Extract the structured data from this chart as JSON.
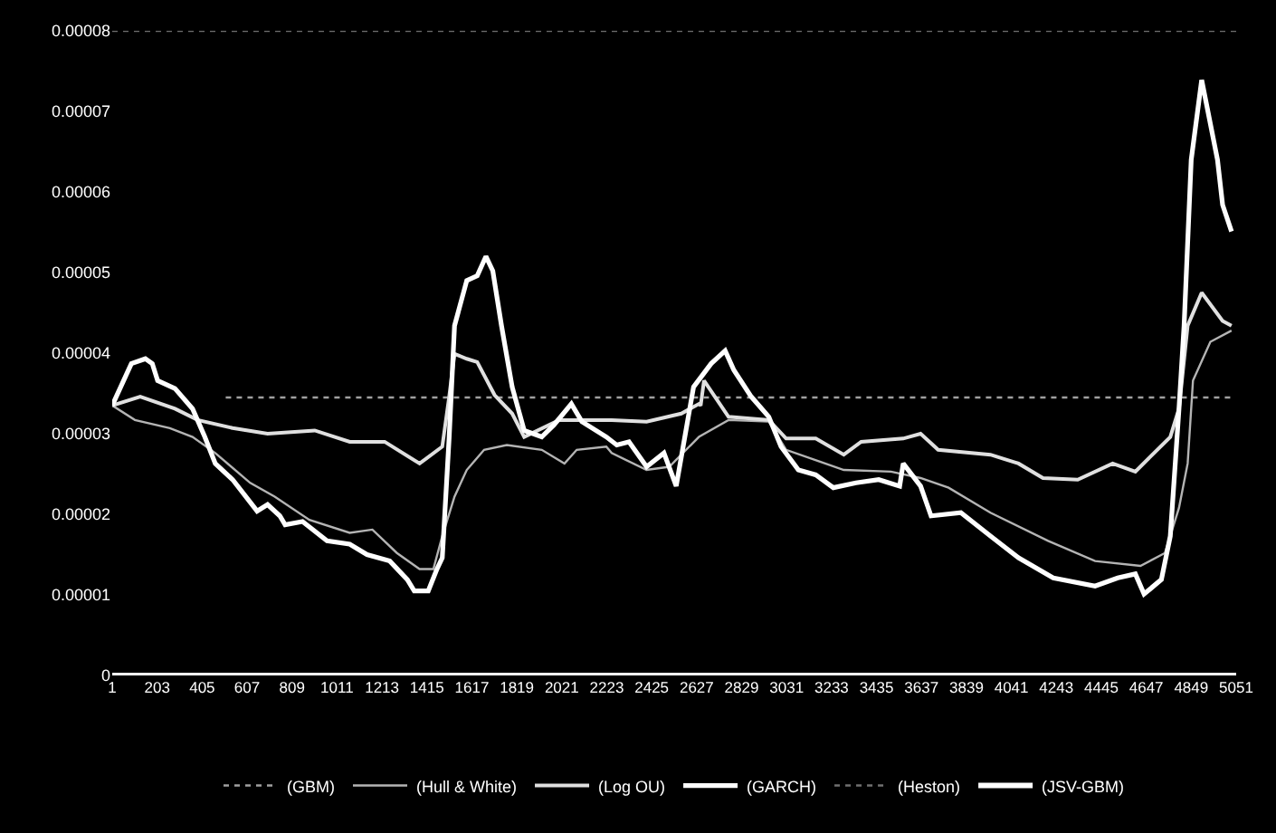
{
  "chart_data": {
    "type": "line",
    "xlim": [
      1,
      5051
    ],
    "xticks": [
      1,
      203,
      405,
      607,
      809,
      1011,
      1213,
      1415,
      1617,
      1819,
      2021,
      2223,
      2425,
      2627,
      2829,
      3031,
      3233,
      3435,
      3637,
      3839,
      4041,
      4243,
      4445,
      4647,
      4849,
      5051
    ],
    "ylim": [
      0,
      8e-05
    ],
    "yticks": [
      0,
      {
        "value": 1e-05,
        "label": "0.00001"
      },
      {
        "value": 2e-05,
        "label": "0.00002"
      },
      {
        "value": 3e-05,
        "label": "0.00003"
      },
      {
        "value": 4e-05,
        "label": "0.00004"
      },
      {
        "value": 5e-05,
        "label": "0.00005"
      },
      {
        "value": 6e-05,
        "label": "0.00006"
      },
      {
        "value": 7e-05,
        "label": "0.00007"
      },
      {
        "value": 8e-05,
        "label": "0.00008"
      }
    ],
    "grid": false,
    "legend": "bottom",
    "marker": "none",
    "series": [
      {
        "name": "(GBM)",
        "color": "#a0a0a0",
        "line_style": "dotted",
        "x": [
          511,
          5030
        ],
        "values": [
          3.45e-05,
          3.45e-05
        ]
      },
      {
        "name": "(Hull & White)",
        "color": "#b4b4b4",
        "line_style": "solid",
        "x": [
          1,
          103,
          260,
          362,
          464,
          621,
          731,
          887,
          1068,
          1170,
          1280,
          1382,
          1444,
          1484,
          1539,
          1594,
          1672,
          1774,
          1931,
          2033,
          2088,
          2221,
          2245,
          2402,
          2504,
          2637,
          2770,
          2951,
          3029,
          3288,
          3500,
          3633,
          3759,
          3947,
          4206,
          4417,
          4621,
          4731,
          4794,
          4833,
          4857,
          4935,
          5030
        ],
        "values": [
          3.35e-05,
          3.17e-05,
          3.07e-05,
          2.96e-05,
          2.76e-05,
          2.39e-05,
          2.22e-05,
          1.93e-05,
          1.77e-05,
          1.81e-05,
          1.52e-05,
          1.32e-05,
          1.32e-05,
          1.73e-05,
          2.22e-05,
          2.55e-05,
          2.8e-05,
          2.86e-05,
          2.8e-05,
          2.63e-05,
          2.8e-05,
          2.84e-05,
          2.76e-05,
          2.55e-05,
          2.59e-05,
          2.96e-05,
          3.17e-05,
          3.15e-05,
          2.8e-05,
          2.55e-05,
          2.53e-05,
          2.45e-05,
          2.33e-05,
          2.02e-05,
          1.67e-05,
          1.42e-05,
          1.36e-05,
          1.52e-05,
          2.08e-05,
          2.63e-05,
          3.66e-05,
          4.14e-05,
          4.28e-05
        ]
      },
      {
        "name": "(Log OU)",
        "color": "#e0e0e0",
        "line_style": "solid",
        "x": [
          1,
          127,
          283,
          385,
          542,
          699,
          911,
          1068,
          1225,
          1382,
          1484,
          1515,
          1539,
          1594,
          1641,
          1719,
          1798,
          1852,
          2009,
          2221,
          2245,
          2402,
          2558,
          2637,
          2645,
          2660,
          2770,
          2951,
          3029,
          3162,
          3288,
          3366,
          3555,
          3633,
          3712,
          3947,
          4073,
          4183,
          4339,
          4496,
          4598,
          4755,
          4794,
          4833,
          4896,
          4990,
          5030
        ],
        "values": [
          3.35e-05,
          3.46e-05,
          3.31e-05,
          3.17e-05,
          3.07e-05,
          3e-05,
          3.04e-05,
          2.9e-05,
          2.9e-05,
          2.63e-05,
          2.84e-05,
          3.46e-05,
          3.99e-05,
          3.93e-05,
          3.89e-05,
          3.48e-05,
          3.25e-05,
          2.96e-05,
          3.17e-05,
          3.17e-05,
          3.17e-05,
          3.15e-05,
          3.25e-05,
          3.37e-05,
          3.35e-05,
          3.66e-05,
          3.21e-05,
          3.17e-05,
          2.94e-05,
          2.94e-05,
          2.74e-05,
          2.9e-05,
          2.94e-05,
          3e-05,
          2.8e-05,
          2.74e-05,
          2.63e-05,
          2.45e-05,
          2.43e-05,
          2.63e-05,
          2.53e-05,
          2.96e-05,
          3.31e-05,
          4.34e-05,
          4.75e-05,
          4.4e-05,
          4.34e-05
        ]
      },
      {
        "name": "(GARCH)",
        "color": "#ffffff",
        "line_style": "solid",
        "x": [
          1,
          87,
          150,
          181,
          205,
          283,
          362,
          417,
          464,
          542,
          652,
          699,
          754,
          778,
          856,
          966,
          1068,
          1146,
          1248,
          1327,
          1358,
          1421,
          1460,
          1484,
          1515,
          1539,
          1594,
          1641,
          1680,
          1711,
          1750,
          1798,
          1852,
          1931,
          1986,
          2064,
          2111,
          2221,
          2268,
          2323,
          2402,
          2480,
          2535,
          2613,
          2692,
          2755,
          2794,
          2872,
          2951,
          3006,
          3084,
          3162,
          3241,
          3343,
          3445,
          3539,
          3555,
          3633,
          3680,
          3814,
          3947,
          4073,
          4229,
          4417,
          4519,
          4598,
          4637,
          4715,
          4755,
          4794,
          4817,
          4849,
          4896,
          4967,
          4990,
          5030
        ],
        "values": [
          3.35e-05,
          3.87e-05,
          3.93e-05,
          3.87e-05,
          3.66e-05,
          3.56e-05,
          3.31e-05,
          2.96e-05,
          2.63e-05,
          2.43e-05,
          2.04e-05,
          2.12e-05,
          1.98e-05,
          1.87e-05,
          1.91e-05,
          1.67e-05,
          1.63e-05,
          1.5e-05,
          1.42e-05,
          1.19e-05,
          1.05e-05,
          1.05e-05,
          1.32e-05,
          1.46e-05,
          2.96e-05,
          4.34e-05,
          4.9e-05,
          4.96e-05,
          5.2e-05,
          5.02e-05,
          4.34e-05,
          3.58e-05,
          3.04e-05,
          2.96e-05,
          3.11e-05,
          3.37e-05,
          3.15e-05,
          2.96e-05,
          2.86e-05,
          2.9e-05,
          2.59e-05,
          2.76e-05,
          2.35e-05,
          3.58e-05,
          3.87e-05,
          4.03e-05,
          3.79e-05,
          3.46e-05,
          3.21e-05,
          2.84e-05,
          2.55e-05,
          2.49e-05,
          2.33e-05,
          2.39e-05,
          2.43e-05,
          2.35e-05,
          2.63e-05,
          2.35e-05,
          1.98e-05,
          2.02e-05,
          1.73e-05,
          1.46e-05,
          1.21e-05,
          1.11e-05,
          1.21e-05,
          1.26e-05,
          1.01e-05,
          1.19e-05,
          1.73e-05,
          3.31e-05,
          4.34e-05,
          6.4e-05,
          7.39e-05,
          6.4e-05,
          5.84e-05,
          5.51e-05
        ]
      },
      {
        "name": "(Heston)",
        "color": "#707070",
        "line_style": "dotted",
        "x": [
          1,
          5051
        ],
        "values": [
          8e-05,
          8e-05
        ]
      },
      {
        "name": "(JSV-GBM)",
        "color": "#ffffff",
        "line_style": "solid",
        "x": [
          1,
          5051
        ],
        "values": [
          0,
          0
        ]
      }
    ]
  }
}
